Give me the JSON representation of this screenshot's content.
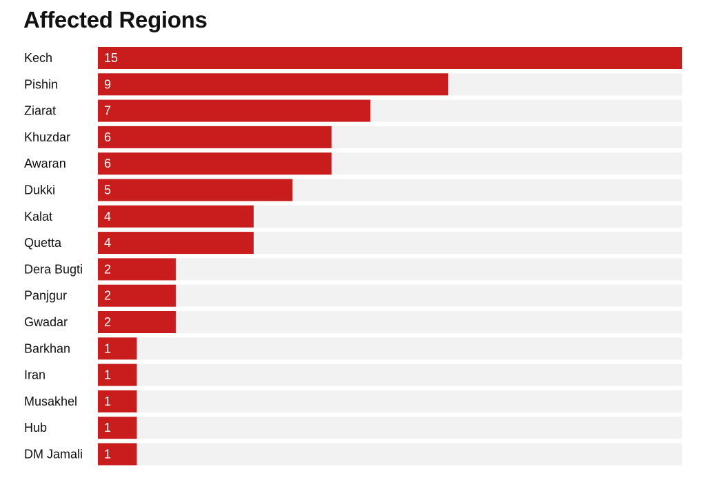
{
  "chart_data": {
    "type": "bar",
    "orientation": "horizontal",
    "title": "Affected Regions",
    "xlabel": "",
    "ylabel": "",
    "categories": [
      "Kech",
      "Pishin",
      "Ziarat",
      "Khuzdar",
      "Awaran",
      "Dukki",
      "Kalat",
      "Quetta",
      "Dera Bugti",
      "Panjgur",
      "Gwadar",
      "Barkhan",
      "Iran",
      "Musakhel",
      "Hub",
      "DM Jamali"
    ],
    "values": [
      15,
      9,
      7,
      6,
      6,
      5,
      4,
      4,
      2,
      2,
      2,
      1,
      1,
      1,
      1,
      1
    ],
    "xlim": [
      0,
      15
    ],
    "grid": false,
    "legend": "none",
    "data_labels": true
  },
  "colors": {
    "bar": "#c91c1c",
    "track": "#f2f2f2",
    "value_text": "#ffffff",
    "label_text": "#111111"
  }
}
